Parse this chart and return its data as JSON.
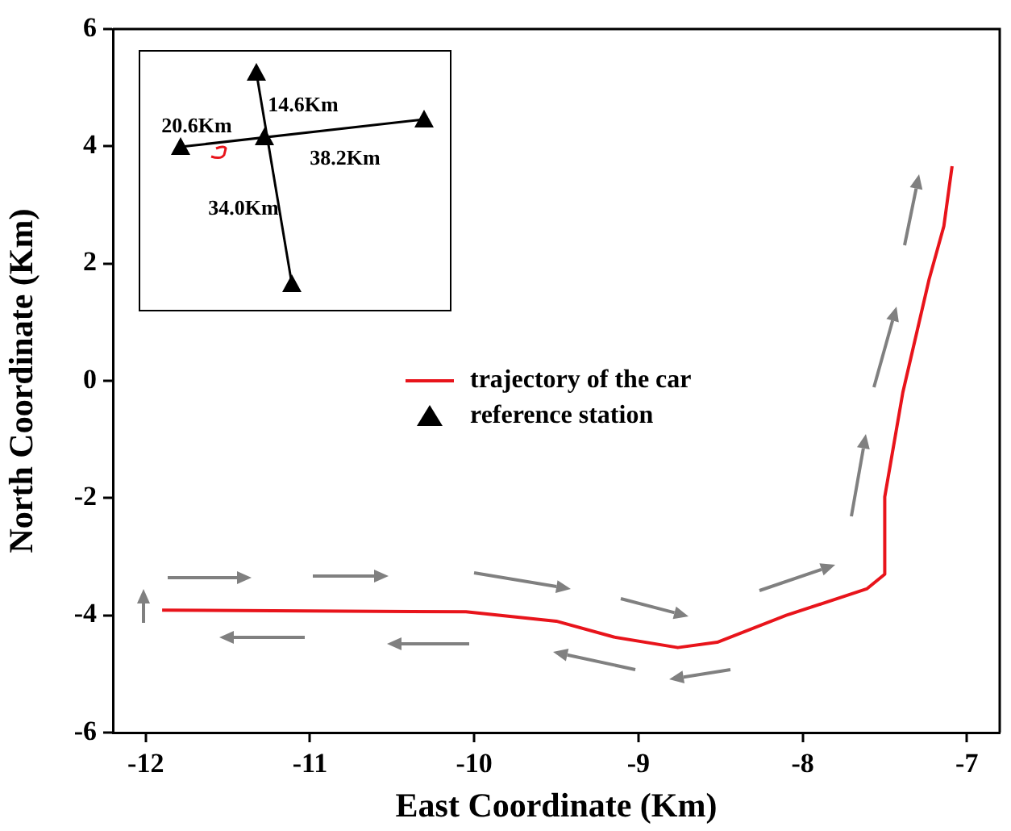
{
  "chart_data": {
    "type": "line",
    "xlabel": "East Coordinate (Km)",
    "ylabel": "North Coordinate (Km)",
    "xlim": [
      -12.2,
      -6.8
    ],
    "xticks": [
      -12,
      -11,
      -10,
      -9,
      -8,
      -7
    ],
    "ylim": [
      -6,
      6
    ],
    "yticks": [
      -6,
      -4,
      -2,
      0,
      2,
      4,
      6
    ],
    "grid": false,
    "legend": "center",
    "annotations": [
      "20.6Km",
      "14.6Km",
      "38.2Km",
      "34.0Km"
    ],
    "series": [
      {
        "name": "trajectory of the car",
        "type": "line",
        "color": "#e8141b",
        "marker": "none",
        "x": [
          -11.9,
          -10.05,
          -9.5,
          -9.15,
          -8.76,
          -8.52,
          -8.1,
          -7.61,
          -7.5,
          -7.5,
          -7.39,
          -7.23,
          -7.14,
          -7.09
        ],
        "values": [
          -3.91,
          -3.94,
          -4.1,
          -4.37,
          -4.55,
          -4.46,
          -4.0,
          -3.55,
          -3.3,
          -1.98,
          -0.2,
          1.73,
          2.64,
          3.66
        ]
      },
      {
        "name": "reference station",
        "type": "scatter",
        "color": "#000000",
        "marker": "triangle"
      }
    ]
  }
}
